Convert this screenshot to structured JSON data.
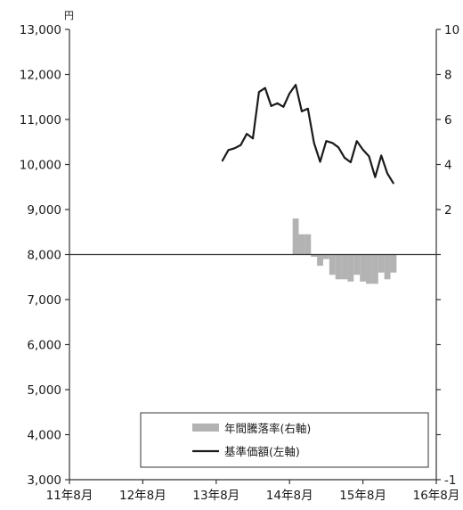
{
  "chart_data": {
    "type": "line",
    "left_axis": {
      "unit": "円",
      "ylim": [
        3000,
        13000
      ],
      "ticks": [
        3000,
        4000,
        5000,
        6000,
        7000,
        8000,
        9000,
        10000,
        11000,
        12000,
        13000
      ],
      "tick_labels": [
        "3,000",
        "4,000",
        "5,000",
        "6,000",
        "7,000",
        "8,000",
        "9,000",
        "10,000",
        "11,000",
        "12,000",
        "13,000"
      ]
    },
    "x_axis": {
      "range": [
        "2011-08",
        "2016-08"
      ],
      "tick_labels": [
        "11年8月",
        "12年8月",
        "13年8月",
        "14年8月",
        "15年8月",
        "16年8月"
      ]
    },
    "right_axis": {
      "ylim": [
        -100,
        100
      ],
      "tick_labels": [
        "10",
        "8",
        "6",
        "4",
        "2",
        "",
        "",
        "",
        "",
        "",
        "-1"
      ]
    },
    "grid": false,
    "legend": {
      "placement": "bottom-right",
      "entries": [
        {
          "label": "年間騰落率(右軸)",
          "type": "bar",
          "color": "#b3b3b3"
        },
        {
          "label": "基準価額(左軸)",
          "type": "line",
          "color": "#1a1a1a"
        }
      ]
    },
    "series": [
      {
        "name": "基準価額(左軸)",
        "axis": "left",
        "type": "line",
        "color": "#1a1a1a",
        "points": [
          [
            "2013-09",
            10080
          ],
          [
            "2013-10",
            10320
          ],
          [
            "2013-11",
            10360
          ],
          [
            "2013-12",
            10430
          ],
          [
            "2014-01",
            10680
          ],
          [
            "2014-02",
            10580
          ],
          [
            "2014-03",
            11610
          ],
          [
            "2014-04",
            11700
          ],
          [
            "2014-05",
            11300
          ],
          [
            "2014-06",
            11360
          ],
          [
            "2014-07",
            11280
          ],
          [
            "2014-08",
            11580
          ],
          [
            "2014-09",
            11770
          ],
          [
            "2014-10",
            11180
          ],
          [
            "2014-11",
            11240
          ],
          [
            "2014-12",
            10480
          ],
          [
            "2015-01",
            10060
          ],
          [
            "2015-02",
            10520
          ],
          [
            "2015-03",
            10480
          ],
          [
            "2015-04",
            10380
          ],
          [
            "2015-05",
            10150
          ],
          [
            "2015-06",
            10050
          ],
          [
            "2015-07",
            10520
          ],
          [
            "2015-08",
            10330
          ],
          [
            "2015-09",
            10180
          ],
          [
            "2015-10",
            9720
          ],
          [
            "2015-11",
            10200
          ],
          [
            "2015-12",
            9800
          ],
          [
            "2016-01",
            9580
          ]
        ]
      },
      {
        "name": "年間騰落率(右軸)",
        "axis": "right",
        "type": "bar",
        "color": "#b3b3b3",
        "points": [
          [
            "2014-09",
            16
          ],
          [
            "2014-10",
            9
          ],
          [
            "2014-11",
            9
          ],
          [
            "2014-12",
            -1
          ],
          [
            "2015-01",
            -5
          ],
          [
            "2015-02",
            -2
          ],
          [
            "2015-03",
            -9
          ],
          [
            "2015-04",
            -11
          ],
          [
            "2015-05",
            -11
          ],
          [
            "2015-06",
            -12
          ],
          [
            "2015-07",
            -9
          ],
          [
            "2015-08",
            -12
          ],
          [
            "2015-09",
            -13
          ],
          [
            "2015-10",
            -13
          ],
          [
            "2015-11",
            -8
          ],
          [
            "2015-12",
            -11
          ],
          [
            "2016-01",
            -8
          ]
        ]
      }
    ]
  }
}
